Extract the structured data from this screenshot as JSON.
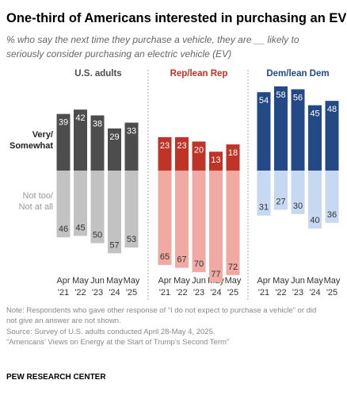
{
  "title": "One-third of Americans interested in purchasing an EV",
  "subtitle": [
    "% who say the next time they purchase a vehicle, they are __ likely to",
    "seriously consider purchasing an electric vehicle (EV)"
  ],
  "notes": [
    "Note: Respondents who gave other response of “I do not expect to purchase a vehicle” or did",
    "not give an answer are not shown.",
    "Source: Survey of U.S. adults conducted April 28-May 4, 2025.",
    "“Americans’ Views on Energy at the Start of Trump’s Second Term”"
  ],
  "credit": "PEW RESEARCH CENTER",
  "chart_data": [
    {
      "type": "diverging-bar",
      "title": "U.S. adults",
      "categories": [
        "Apr '21",
        "May '22",
        "Jun '23",
        "May '24",
        "May '25"
      ],
      "series": [
        {
          "name": "Very/ Somewhat",
          "color": "#4d4d4d",
          "direction": "up",
          "values": [
            39,
            42,
            38,
            29,
            33
          ]
        },
        {
          "name": "Not too/ Not at all",
          "color": "#c2c2c2",
          "direction": "down",
          "values": [
            46,
            45,
            50,
            57,
            53
          ]
        }
      ]
    },
    {
      "type": "diverging-bar",
      "title": "Rep/lean Rep",
      "categories": [
        "Apr '21",
        "May '22",
        "Jun '23",
        "May '24",
        "May '25"
      ],
      "series": [
        {
          "color": "#bf3427",
          "direction": "up",
          "values": [
            23,
            23,
            20,
            13,
            18
          ]
        },
        {
          "color": "#f0aaa2",
          "direction": "down",
          "values": [
            65,
            67,
            70,
            77,
            72
          ]
        }
      ]
    },
    {
      "type": "diverging-bar",
      "title": "Dem/lean Dem",
      "categories": [
        "Apr '21",
        "May '22",
        "Jun '23",
        "May '24",
        "May '25"
      ],
      "series": [
        {
          "color": "#234a86",
          "direction": "up",
          "values": [
            54,
            58,
            56,
            45,
            48
          ]
        },
        {
          "color": "#c6d8f2",
          "direction": "down",
          "values": [
            31,
            27,
            30,
            40,
            36
          ]
        }
      ]
    }
  ]
}
